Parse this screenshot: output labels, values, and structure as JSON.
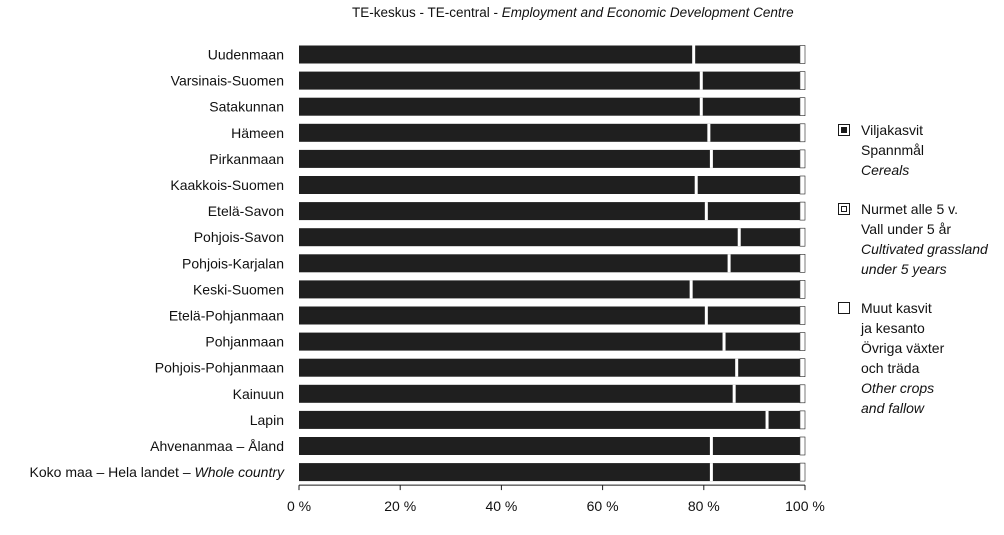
{
  "chart_data": {
    "type": "bar",
    "orientation": "horizontal",
    "stacked": true,
    "title_parts": {
      "plain": "TE-keskus - TE-central - ",
      "italic": "Employment and Economic Development Centre"
    },
    "categories": [
      "Uudenmaan",
      "Varsinais-Suomen",
      "Satakunnan",
      "Hämeen",
      "Pirkanmaan",
      "Kaakkois-Suomen",
      "Etelä-Savon",
      "Pohjois-Savon",
      "Pohjois-Karjalan",
      "Keski-Suomen",
      "Etelä-Pohjanmaan",
      "Pohjanmaan",
      "Pohjois-Pohjanmaan",
      "Kainuun",
      "Lapin",
      "Ahvenanmaa – Åland",
      "Koko maa – Hela landet – Whole country"
    ],
    "last_category_parts": {
      "plain": "Koko maa – Hela landet – ",
      "italic": "Whole country"
    },
    "series": [
      {
        "key": "cereals",
        "values": [
          78,
          79.5,
          79.5,
          81,
          81.5,
          78.5,
          80.5,
          87,
          85,
          77.5,
          80.5,
          84,
          86.5,
          86,
          92.5,
          81.5,
          81.5
        ]
      },
      {
        "key": "grassland",
        "values": [
          21,
          19.5,
          19.5,
          18,
          17.5,
          20.5,
          18.5,
          12,
          14,
          21.5,
          18.5,
          15,
          12.5,
          13,
          6.5,
          17.5,
          17.5
        ]
      },
      {
        "key": "other",
        "values": [
          1,
          1,
          1,
          1,
          1,
          1,
          1,
          1,
          1,
          1,
          1,
          1,
          1,
          1,
          1,
          1,
          1
        ]
      }
    ],
    "xaxis": {
      "ticks": [
        0,
        20,
        40,
        60,
        80,
        100
      ],
      "tick_labels": [
        "0 %",
        "20 %",
        "40 %",
        "60 %",
        "80 %",
        "100 %"
      ],
      "range": [
        0,
        100
      ]
    },
    "grid": false,
    "legend_position": "right",
    "colors": {
      "bar": "#1f1f1f",
      "other": "#ffffff",
      "text": "#111111"
    }
  },
  "legend": [
    {
      "key": "cereals",
      "fi": "Viljakasvit",
      "sv": "Spannmål",
      "en": "Cereals"
    },
    {
      "key": "grassland",
      "fi": "Nurmet alle 5 v.",
      "sv": "Vall under 5 år",
      "en": "Cultivated grassland under 5 years"
    },
    {
      "key": "other",
      "fi": "Muut kasvit ja kesanto",
      "sv": "Övriga växter och träda",
      "en": "Other crops and fallow"
    }
  ]
}
